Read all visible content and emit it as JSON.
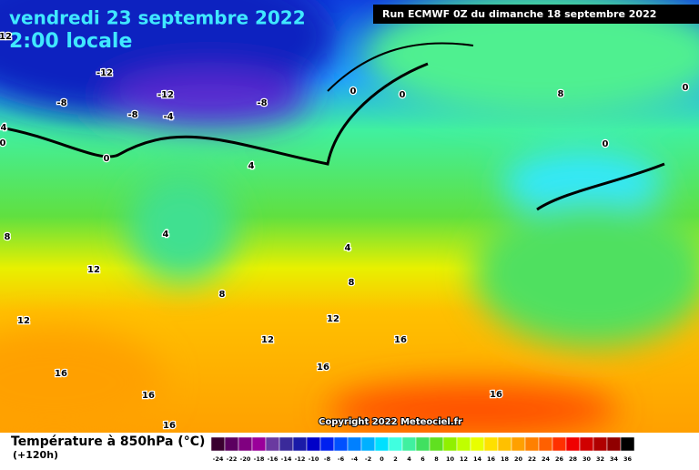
{
  "header": {
    "date": "vendredi 23 septembre 2022",
    "time": "2:00 locale",
    "run": "Run ECMWF 0Z du dimanche 18 septembre 2022"
  },
  "copyright": "Copyright 2022 Meteociel.fr",
  "legend": {
    "title": "Température à 850hPa (°C)",
    "lead": "(+120h)",
    "labels": [
      -24,
      -22,
      -20,
      -18,
      -16,
      -14,
      -12,
      -10,
      -8,
      -6,
      -4,
      -2,
      0,
      2,
      4,
      6,
      8,
      10,
      12,
      14,
      16,
      18,
      20,
      22,
      24,
      26,
      28,
      30,
      32,
      34,
      36
    ],
    "colors": [
      "#3a0030",
      "#5c0060",
      "#800080",
      "#9a009a",
      "#6a3aa0",
      "#3a2a9a",
      "#1a1aa8",
      "#0000c8",
      "#0020f0",
      "#0050ff",
      "#0080ff",
      "#00b0ff",
      "#00e0ff",
      "#40ffe0",
      "#40f0a0",
      "#40e060",
      "#60e020",
      "#90f000",
      "#c0ff00",
      "#e8ff00",
      "#ffe000",
      "#ffc000",
      "#ffa000",
      "#ff8000",
      "#ff6000",
      "#ff3000",
      "#f00000",
      "#d00000",
      "#b00000",
      "#900000",
      "#000000"
    ]
  },
  "contour_labels": [
    -12,
    -12,
    -8,
    -8,
    -8,
    -4,
    12,
    4,
    0,
    0,
    0,
    0,
    0,
    0,
    4,
    4,
    4,
    8,
    8,
    8,
    12,
    12,
    12,
    12,
    16,
    16,
    16,
    16,
    16,
    16,
    8
  ]
}
